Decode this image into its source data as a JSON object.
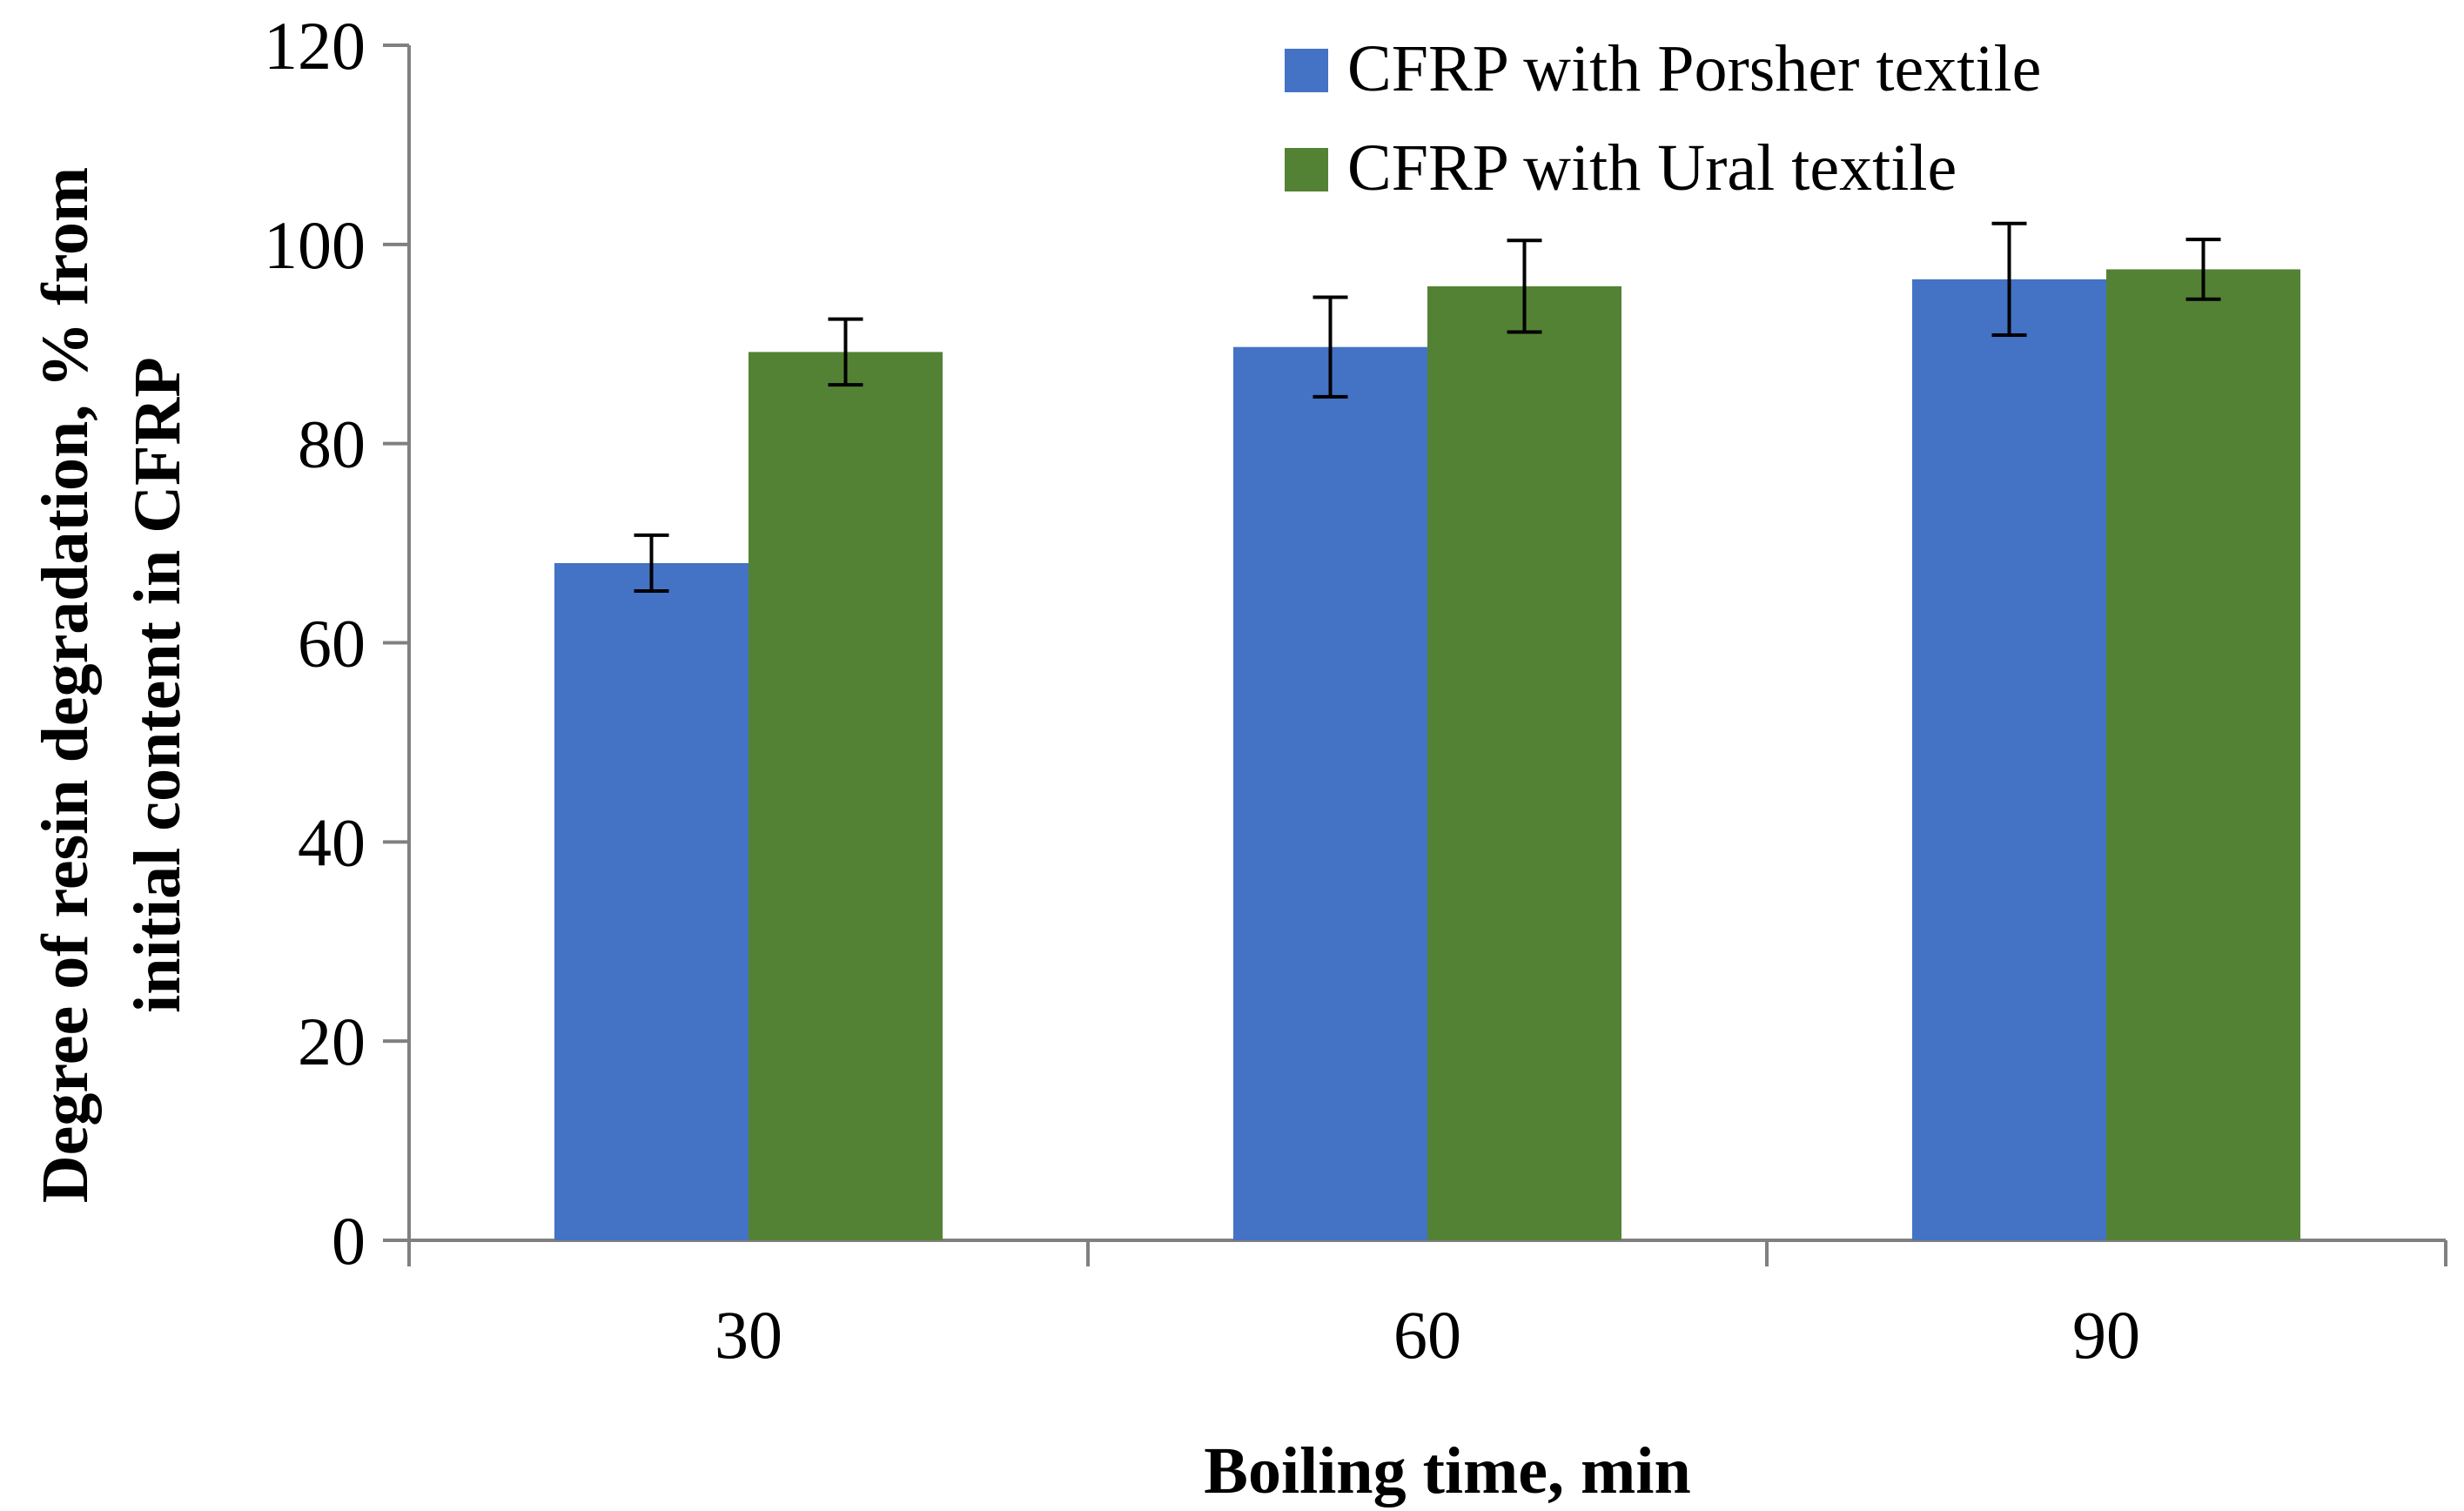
{
  "chart_data": {
    "type": "bar",
    "categories": [
      "30",
      "60",
      "90"
    ],
    "series": [
      {
        "name": "CFRP with Porsher textile",
        "color": "#4472C4",
        "values": [
          68,
          89.7,
          96.5
        ],
        "error": [
          2.8,
          5,
          5.6
        ]
      },
      {
        "name": "CFRP with Ural textile",
        "color": "#548235",
        "values": [
          89.2,
          95.8,
          97.5
        ],
        "error": [
          3.3,
          4.6,
          3
        ]
      }
    ],
    "title": "",
    "xlabel": "Boiling time, min",
    "ylabel_line1": "Degree of resin degradation, % from",
    "ylabel_line2": "initial content in CFRP",
    "ylim": [
      0,
      120
    ],
    "yticks": [
      0,
      20,
      40,
      60,
      80,
      100,
      120
    ],
    "legend_position": "top-right",
    "grid": false
  }
}
